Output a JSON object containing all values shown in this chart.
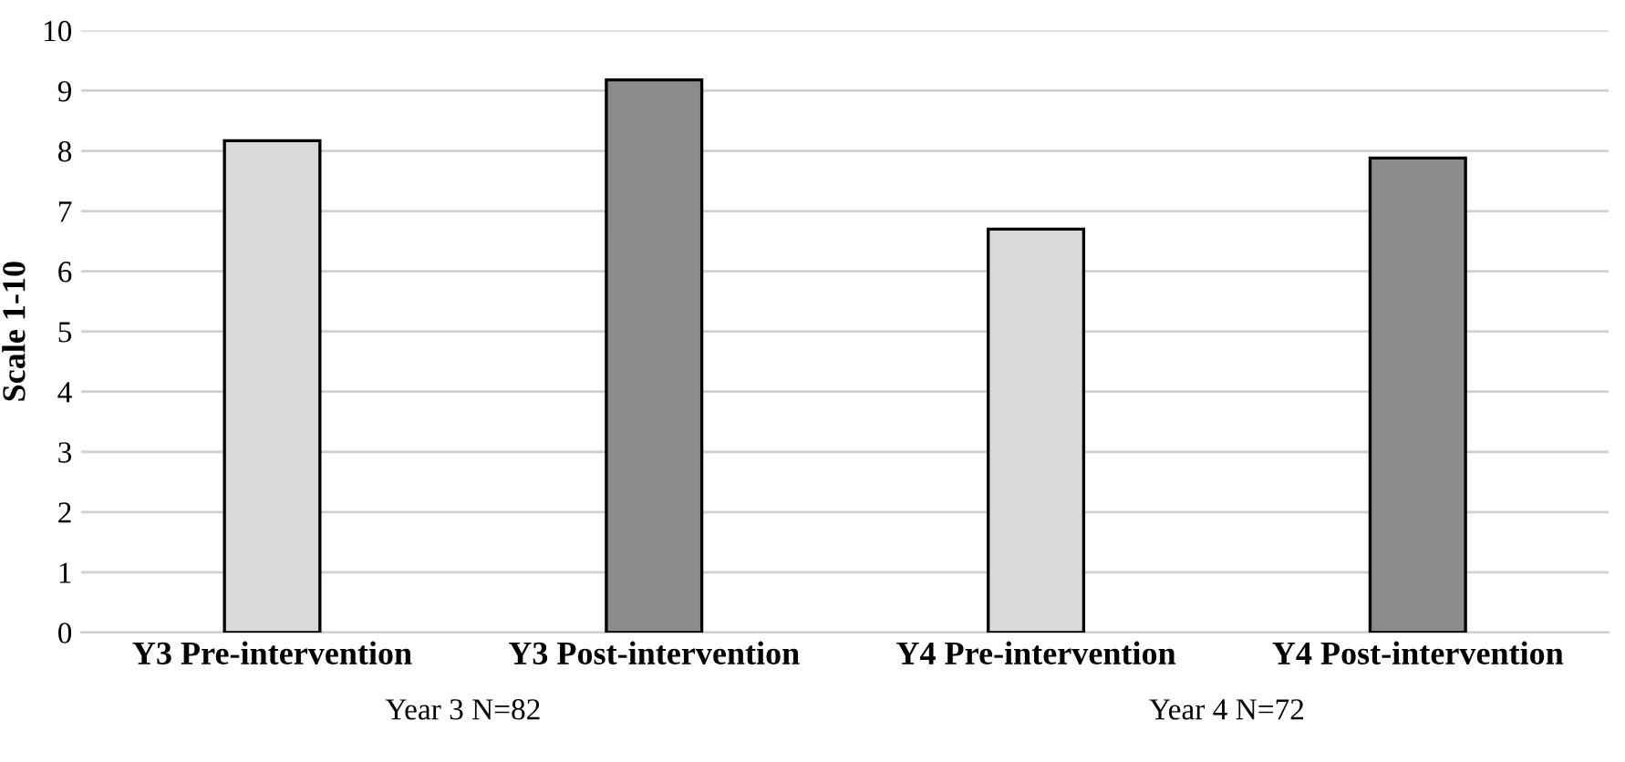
{
  "chart_data": {
    "type": "bar",
    "ylabel": "Scale 1-10",
    "categories": [
      "Y3 Pre-intervention",
      "Y3 Post-intervention",
      "Y4 Pre-intervention",
      "Y4 Post-intervention"
    ],
    "values": [
      8.17,
      9.18,
      6.7,
      7.88
    ],
    "colors": [
      "#d9d9d9",
      "#8c8c8c",
      "#d9d9d9",
      "#8c8c8c"
    ],
    "ylim": [
      0,
      10
    ],
    "yticks": [
      0,
      1,
      2,
      3,
      4,
      5,
      6,
      7,
      8,
      9,
      10
    ],
    "grid": "y",
    "legend": false,
    "annotations": [
      "Year 3 N=82",
      "Year 4 N=72"
    ]
  }
}
